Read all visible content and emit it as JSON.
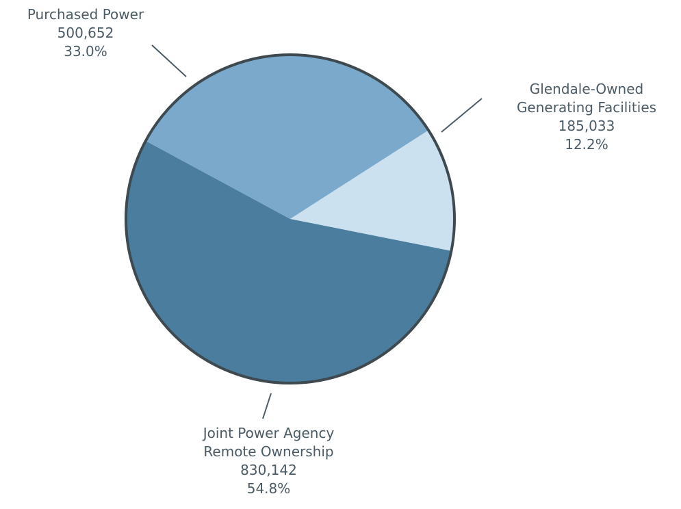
{
  "chart_data": {
    "type": "pie",
    "slices": [
      {
        "name": "Glendale-Owned Generating Facilities",
        "value": 185033,
        "percent": "12.2%",
        "value_label": "185,033",
        "color": "#cbe1f0"
      },
      {
        "name": "Joint Power Agency Remote Ownership",
        "value": 830142,
        "percent": "54.8%",
        "value_label": "830,142",
        "color": "#4b7d9f"
      },
      {
        "name": "Purchased Power",
        "value": 500652,
        "percent": "33.0%",
        "value_label": "500,652",
        "color": "#7aa9cc"
      }
    ]
  },
  "labels": {
    "purchased": {
      "line1": "Purchased Power",
      "value": "500,652",
      "percent": "33.0%"
    },
    "glendale": {
      "line1": "Glendale-Owned",
      "line2": "Generating Facilities",
      "value": "185,033",
      "percent": "12.2%"
    },
    "joint": {
      "line1": "Joint Power Agency",
      "line2": "Remote Ownership",
      "value": "830,142",
      "percent": "54.8%"
    }
  }
}
